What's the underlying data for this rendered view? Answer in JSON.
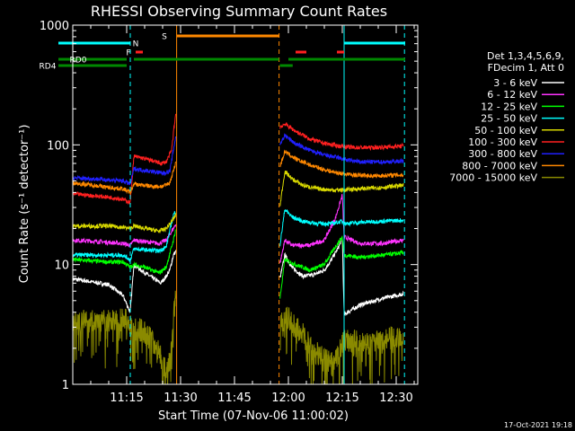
{
  "chart_data": {
    "type": "line",
    "title": "RHESSI Observing Summary Count Rates",
    "xlabel": "Start Time (07-Nov-06 11:00:02)",
    "ylabel": "Count Rate (s⁻¹ detector⁻¹)",
    "yscale": "log",
    "xlim": [
      0,
      96
    ],
    "ylim": [
      1,
      1000
    ],
    "x_unit": "minutes after 11:00:02",
    "x_ticks": [
      {
        "t": 15,
        "label": "11:15"
      },
      {
        "t": 30,
        "label": "11:30"
      },
      {
        "t": 45,
        "label": "11:45"
      },
      {
        "t": 60,
        "label": "12:00"
      },
      {
        "t": 75,
        "label": "12:15"
      },
      {
        "t": 90,
        "label": "12:30"
      }
    ],
    "y_ticks": [
      {
        "v": 1,
        "label": "1"
      },
      {
        "v": 10,
        "label": "10"
      },
      {
        "v": 100,
        "label": "100"
      },
      {
        "v": 1000,
        "label": "1000"
      }
    ],
    "legend": {
      "placement": "right",
      "header": [
        "Det 1,3,4,5,6,9,",
        "FDecim 1, Att 0"
      ],
      "entries": [
        {
          "label": "3 - 6 keV",
          "color": "#ffffff"
        },
        {
          "label": "6 - 12 keV",
          "color": "#ff33ff"
        },
        {
          "label": "12 - 25 keV",
          "color": "#00ff00"
        },
        {
          "label": "25 - 50 keV",
          "color": "#00ffff"
        },
        {
          "label": "50 - 100 keV",
          "color": "#d9d900"
        },
        {
          "label": "100 - 300 keV",
          "color": "#ff2020"
        },
        {
          "label": "300 - 800 keV",
          "color": "#2020ff"
        },
        {
          "label": "800 - 7000 keV",
          "color": "#ff8800"
        },
        {
          "label": "7000 - 15000 keV",
          "color": "#8a8a00"
        }
      ]
    },
    "series": [
      {
        "name": "3 - 6 keV",
        "color": "#000000",
        "points": [
          [
            0,
            7.6
          ],
          [
            10,
            6.8
          ],
          [
            14,
            5.5
          ],
          [
            16,
            4.0
          ],
          [
            17,
            10
          ],
          [
            19,
            9
          ],
          [
            22,
            7.8
          ],
          [
            24.5,
            7.0
          ],
          [
            26,
            8
          ],
          [
            27,
            9
          ],
          [
            28,
            12
          ],
          [
            28.7,
            13
          ],
          [
            57.6,
            7.5
          ],
          [
            59,
            12
          ],
          [
            61,
            9.5
          ],
          [
            64,
            8
          ],
          [
            67,
            8.2
          ],
          [
            70,
            9
          ],
          [
            72,
            11
          ],
          [
            74,
            14
          ],
          [
            75,
            17
          ],
          [
            75.5,
            3.8
          ],
          [
            76.5,
            4.0
          ],
          [
            80,
            4.6
          ],
          [
            86,
            5.2
          ],
          [
            92,
            5.7
          ]
        ]
      },
      {
        "name": "6 - 12 keV",
        "color": "#ff33ff",
        "points": [
          [
            0,
            16
          ],
          [
            8,
            15.5
          ],
          [
            14,
            15
          ],
          [
            16,
            14.5
          ],
          [
            17,
            16
          ],
          [
            24,
            15
          ],
          [
            26,
            16
          ],
          [
            28,
            20
          ],
          [
            28.7,
            22
          ],
          [
            57.6,
            10
          ],
          [
            59,
            16
          ],
          [
            61,
            14.5
          ],
          [
            66,
            14.5
          ],
          [
            70,
            16
          ],
          [
            73,
            24
          ],
          [
            75,
            38
          ],
          [
            75.5,
            17
          ],
          [
            80,
            15
          ],
          [
            86,
            15
          ],
          [
            92,
            16
          ]
        ]
      },
      {
        "name": "12 - 25 keV",
        "color": "#00ff00",
        "points": [
          [
            0,
            11
          ],
          [
            10,
            10.5
          ],
          [
            14,
            10.5
          ],
          [
            16,
            9.5
          ],
          [
            17,
            10
          ],
          [
            20,
            9.5
          ],
          [
            24,
            8.5
          ],
          [
            26,
            9.5
          ],
          [
            28,
            16
          ],
          [
            28.7,
            20
          ],
          [
            57.6,
            5
          ],
          [
            59,
            11
          ],
          [
            62,
            10
          ],
          [
            66,
            9
          ],
          [
            70,
            10
          ],
          [
            73,
            14
          ],
          [
            75,
            17
          ],
          [
            75.5,
            12
          ],
          [
            80,
            11.5
          ],
          [
            86,
            12
          ],
          [
            92,
            12.5
          ]
        ]
      },
      {
        "name": "25 - 50 keV",
        "color": "#00ffff",
        "points": [
          [
            0,
            12
          ],
          [
            10,
            12
          ],
          [
            14,
            12
          ],
          [
            16,
            11
          ],
          [
            17,
            13.5
          ],
          [
            24,
            13
          ],
          [
            26,
            14
          ],
          [
            28,
            26
          ],
          [
            28.7,
            28
          ],
          [
            57.6,
            14
          ],
          [
            59,
            29
          ],
          [
            61,
            25
          ],
          [
            64,
            23
          ],
          [
            68,
            22
          ],
          [
            72,
            22
          ],
          [
            75,
            23
          ],
          [
            75.5,
            22
          ],
          [
            80,
            22.5
          ],
          [
            86,
            23
          ],
          [
            92,
            23.5
          ]
        ]
      },
      {
        "name": "50 - 100 keV",
        "color": "#d9d900",
        "points": [
          [
            0,
            21
          ],
          [
            10,
            21
          ],
          [
            14,
            20.5
          ],
          [
            16,
            20
          ],
          [
            17,
            21
          ],
          [
            24,
            19
          ],
          [
            26,
            20
          ],
          [
            28,
            24
          ],
          [
            28.7,
            26
          ],
          [
            57.6,
            30
          ],
          [
            59,
            60
          ],
          [
            61,
            52
          ],
          [
            64,
            46
          ],
          [
            68,
            43
          ],
          [
            72,
            42
          ],
          [
            75,
            42
          ],
          [
            75.5,
            42
          ],
          [
            80,
            43
          ],
          [
            86,
            44
          ],
          [
            92,
            46
          ]
        ]
      },
      {
        "name": "100 - 300 keV",
        "color": "#ff2020",
        "points": [
          [
            0,
            39
          ],
          [
            4,
            38
          ],
          [
            8,
            37
          ],
          [
            12,
            36
          ],
          [
            14,
            35
          ],
          [
            16,
            33
          ],
          [
            17,
            80
          ],
          [
            19,
            78
          ],
          [
            22,
            74
          ],
          [
            24.5,
            70
          ],
          [
            26,
            72
          ],
          [
            27.5,
            90
          ],
          [
            28.3,
            150
          ],
          [
            28.7,
            185
          ],
          [
            57.6,
            140
          ],
          [
            59,
            150
          ],
          [
            62,
            130
          ],
          [
            66,
            112
          ],
          [
            70,
            103
          ],
          [
            74,
            98
          ],
          [
            78,
            95
          ],
          [
            84,
            95
          ],
          [
            90,
            97
          ],
          [
            92,
            98
          ]
        ]
      },
      {
        "name": "300 - 800 keV",
        "color": "#2020ff",
        "points": [
          [
            0,
            53
          ],
          [
            6,
            52
          ],
          [
            10,
            51
          ],
          [
            14,
            50
          ],
          [
            16,
            47
          ],
          [
            17,
            63
          ],
          [
            22,
            60
          ],
          [
            25,
            58
          ],
          [
            27,
            60
          ],
          [
            28.7,
            120
          ],
          [
            57.6,
            100
          ],
          [
            59,
            120
          ],
          [
            62,
            102
          ],
          [
            66,
            90
          ],
          [
            70,
            82
          ],
          [
            74,
            78
          ],
          [
            76,
            75
          ],
          [
            80,
            72
          ],
          [
            86,
            72
          ],
          [
            92,
            73
          ]
        ]
      },
      {
        "name": "800 - 7000 keV",
        "color": "#ff8800",
        "points": [
          [
            0,
            48
          ],
          [
            6,
            46
          ],
          [
            10,
            44
          ],
          [
            14,
            43
          ],
          [
            16,
            40
          ],
          [
            17,
            47
          ],
          [
            22,
            45
          ],
          [
            25,
            45
          ],
          [
            27,
            48
          ],
          [
            28.7,
            72
          ],
          [
            57.6,
            65
          ],
          [
            59,
            88
          ],
          [
            62,
            76
          ],
          [
            66,
            68
          ],
          [
            70,
            62
          ],
          [
            74,
            58
          ],
          [
            78,
            56
          ],
          [
            84,
            55
          ],
          [
            90,
            56
          ],
          [
            92,
            56
          ]
        ]
      },
      {
        "name": "7000 - 15000 keV",
        "color": "#8a8a00",
        "points": [
          [
            0,
            3.4
          ],
          [
            10,
            3.4
          ],
          [
            14,
            3.5
          ],
          [
            16,
            3.2
          ],
          [
            17,
            3.0
          ],
          [
            20,
            2.7
          ],
          [
            23,
            2.2
          ],
          [
            25,
            1.6
          ],
          [
            26,
            1.2
          ],
          [
            27,
            1.6
          ],
          [
            28,
            3.5
          ],
          [
            28.7,
            7
          ],
          [
            57.6,
            3.2
          ],
          [
            60,
            3.6
          ],
          [
            62,
            3.0
          ],
          [
            64,
            2.6
          ],
          [
            66,
            2.1
          ],
          [
            68,
            1.8
          ],
          [
            70,
            1.6
          ],
          [
            72,
            1.5
          ],
          [
            74,
            1.7
          ],
          [
            75,
            2.3
          ],
          [
            75.5,
            2.4
          ],
          [
            80,
            2.2
          ],
          [
            84,
            2.2
          ],
          [
            88,
            2.4
          ],
          [
            92,
            2.6
          ]
        ]
      }
    ],
    "data_gaps": [
      [
        28.7,
        57.6
      ]
    ],
    "vertical_markers": [
      {
        "t": 16.0,
        "color": "#00ffff",
        "style": "dashed"
      },
      {
        "t": 28.9,
        "color": "#ff8800",
        "style": "solid"
      },
      {
        "t": 57.4,
        "color": "#ff8800",
        "style": "dashed"
      },
      {
        "t": 75.5,
        "color": "#00ffff",
        "style": "solid"
      },
      {
        "t": 92.3,
        "color": "#00ffff",
        "style": "dashed"
      }
    ],
    "flag_bars": [
      {
        "label": "N",
        "color": "#00ffff",
        "segments": [
          [
            -4,
            16
          ]
        ],
        "level": 1,
        "label_at": 17.5
      },
      {
        "label": "N",
        "color": "#00ffff",
        "segments": [
          [
            75.5,
            92.5
          ]
        ],
        "level": 1,
        "label_at": null
      },
      {
        "label": "F",
        "color": "#ff2020",
        "segments": [
          [
            17.5,
            19.5
          ],
          [
            62,
            65
          ],
          [
            73.5,
            75.5
          ]
        ],
        "level": 2,
        "label_at": 15.5
      },
      {
        "label": "S",
        "color": "#ff8800",
        "segments": [
          [
            28.9,
            57.4
          ]
        ],
        "level": 0,
        "label_at": 25.5
      },
      {
        "label": "RD0",
        "color": "#008800",
        "segments": [
          [
            -4,
            15
          ],
          [
            17,
            57.4
          ],
          [
            60,
            92.5
          ]
        ],
        "level": 3,
        "label_at": 1.5
      },
      {
        "label": "RD4",
        "color": "#008800",
        "segments": [
          [
            -4,
            15
          ],
          [
            57.6,
            61.2
          ]
        ],
        "level": 4,
        "label_at": -7
      }
    ],
    "footer_timestamp": "17-Oct-2021 19:18"
  }
}
